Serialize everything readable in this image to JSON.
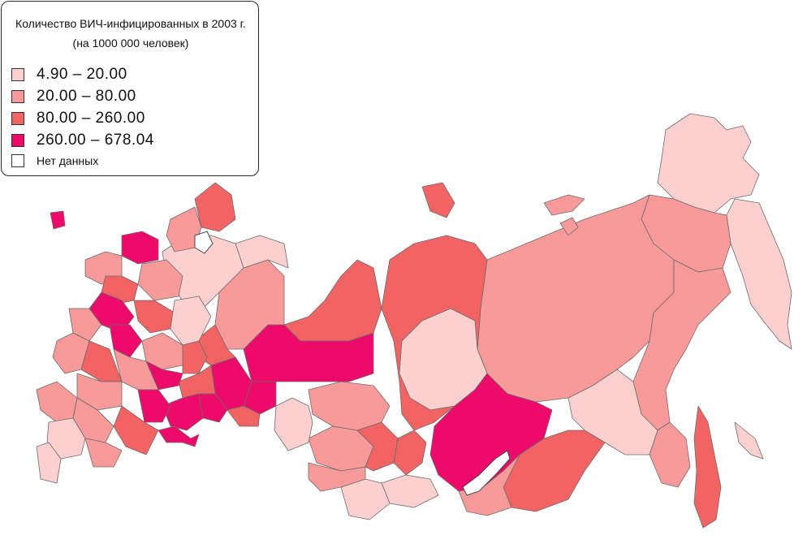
{
  "legend": {
    "title": "Количество ВИЧ-инфицированных в 2003 г.",
    "subtitle": "(на 1000 000 человек)",
    "classes": [
      {
        "label": "4.90  –  20.00",
        "color": "#fdd0d0"
      },
      {
        "label": "20.00  –  80.00",
        "color": "#f99a9a"
      },
      {
        "label": "80.00  –  260.00",
        "color": "#f26464"
      },
      {
        "label": "260.00  –  678.04",
        "color": "#ee0a6a"
      },
      {
        "label": "Нет данных",
        "color": "#ffffff"
      }
    ]
  }
}
